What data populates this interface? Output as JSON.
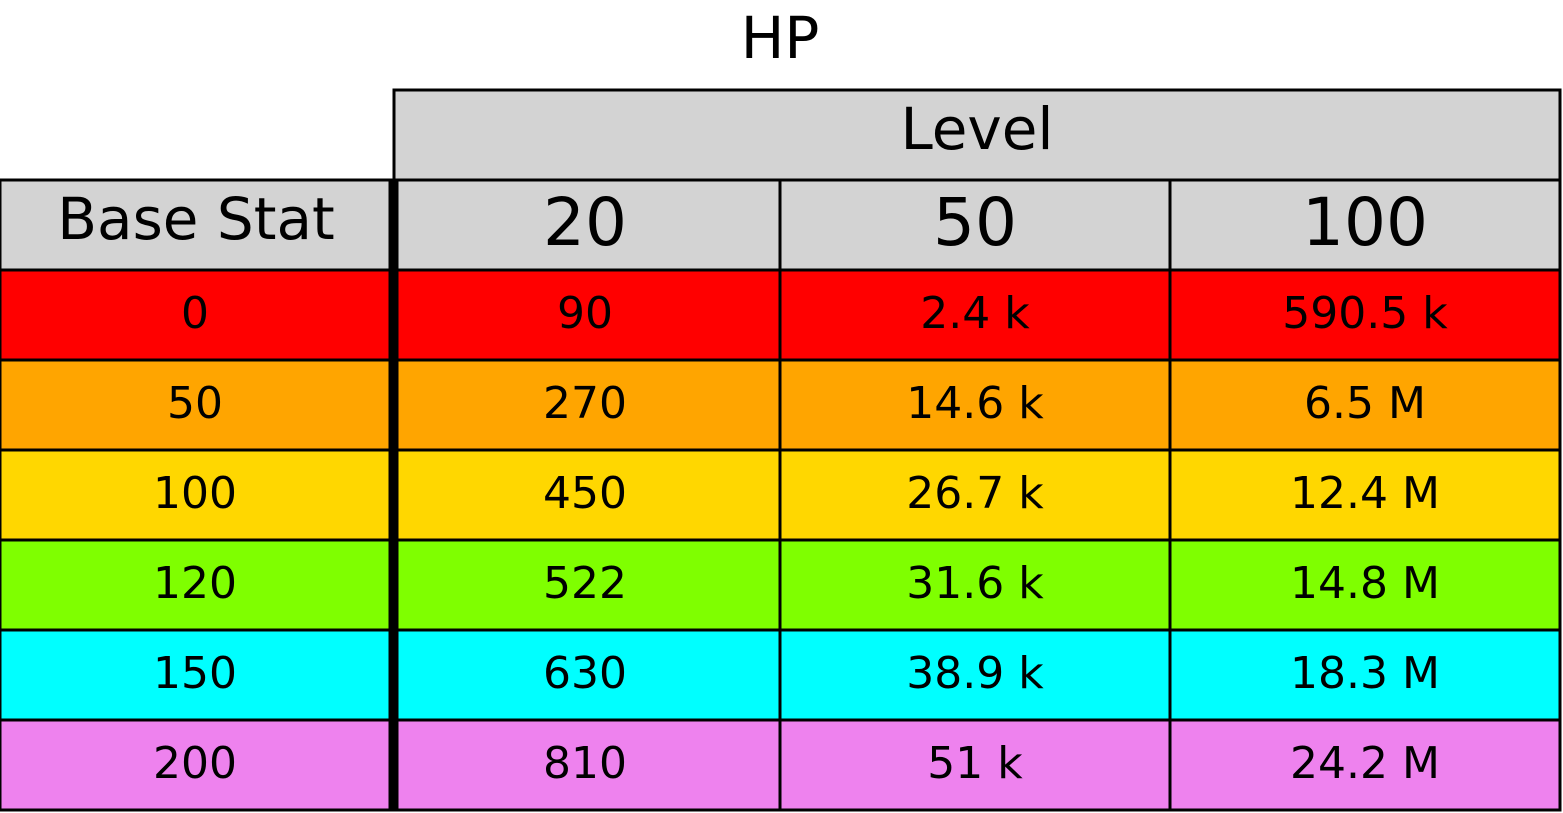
{
  "chart_data": {
    "type": "table",
    "title": "HP",
    "column_group_label": "Level",
    "row_header_label": "Base Stat",
    "columns": [
      "20",
      "50",
      "100"
    ],
    "header_fill": "#d3d3d3",
    "rows": [
      {
        "base_stat": "0",
        "color": "#ff0000",
        "cells": [
          "90",
          "2.4 k",
          "590.5 k"
        ]
      },
      {
        "base_stat": "50",
        "color": "#ffa500",
        "cells": [
          "270",
          "14.6 k",
          "6.5 M"
        ]
      },
      {
        "base_stat": "100",
        "color": "#ffd700",
        "cells": [
          "450",
          "26.7 k",
          "12.4 M"
        ]
      },
      {
        "base_stat": "120",
        "color": "#7fff00",
        "cells": [
          "522",
          "31.6 k",
          "14.8 M"
        ]
      },
      {
        "base_stat": "150",
        "color": "#00ffff",
        "cells": [
          "630",
          "38.9 k",
          "18.3 M"
        ]
      },
      {
        "base_stat": "200",
        "color": "#ee82ee",
        "cells": [
          "810",
          "51 k",
          "24.2 M"
        ]
      }
    ]
  }
}
